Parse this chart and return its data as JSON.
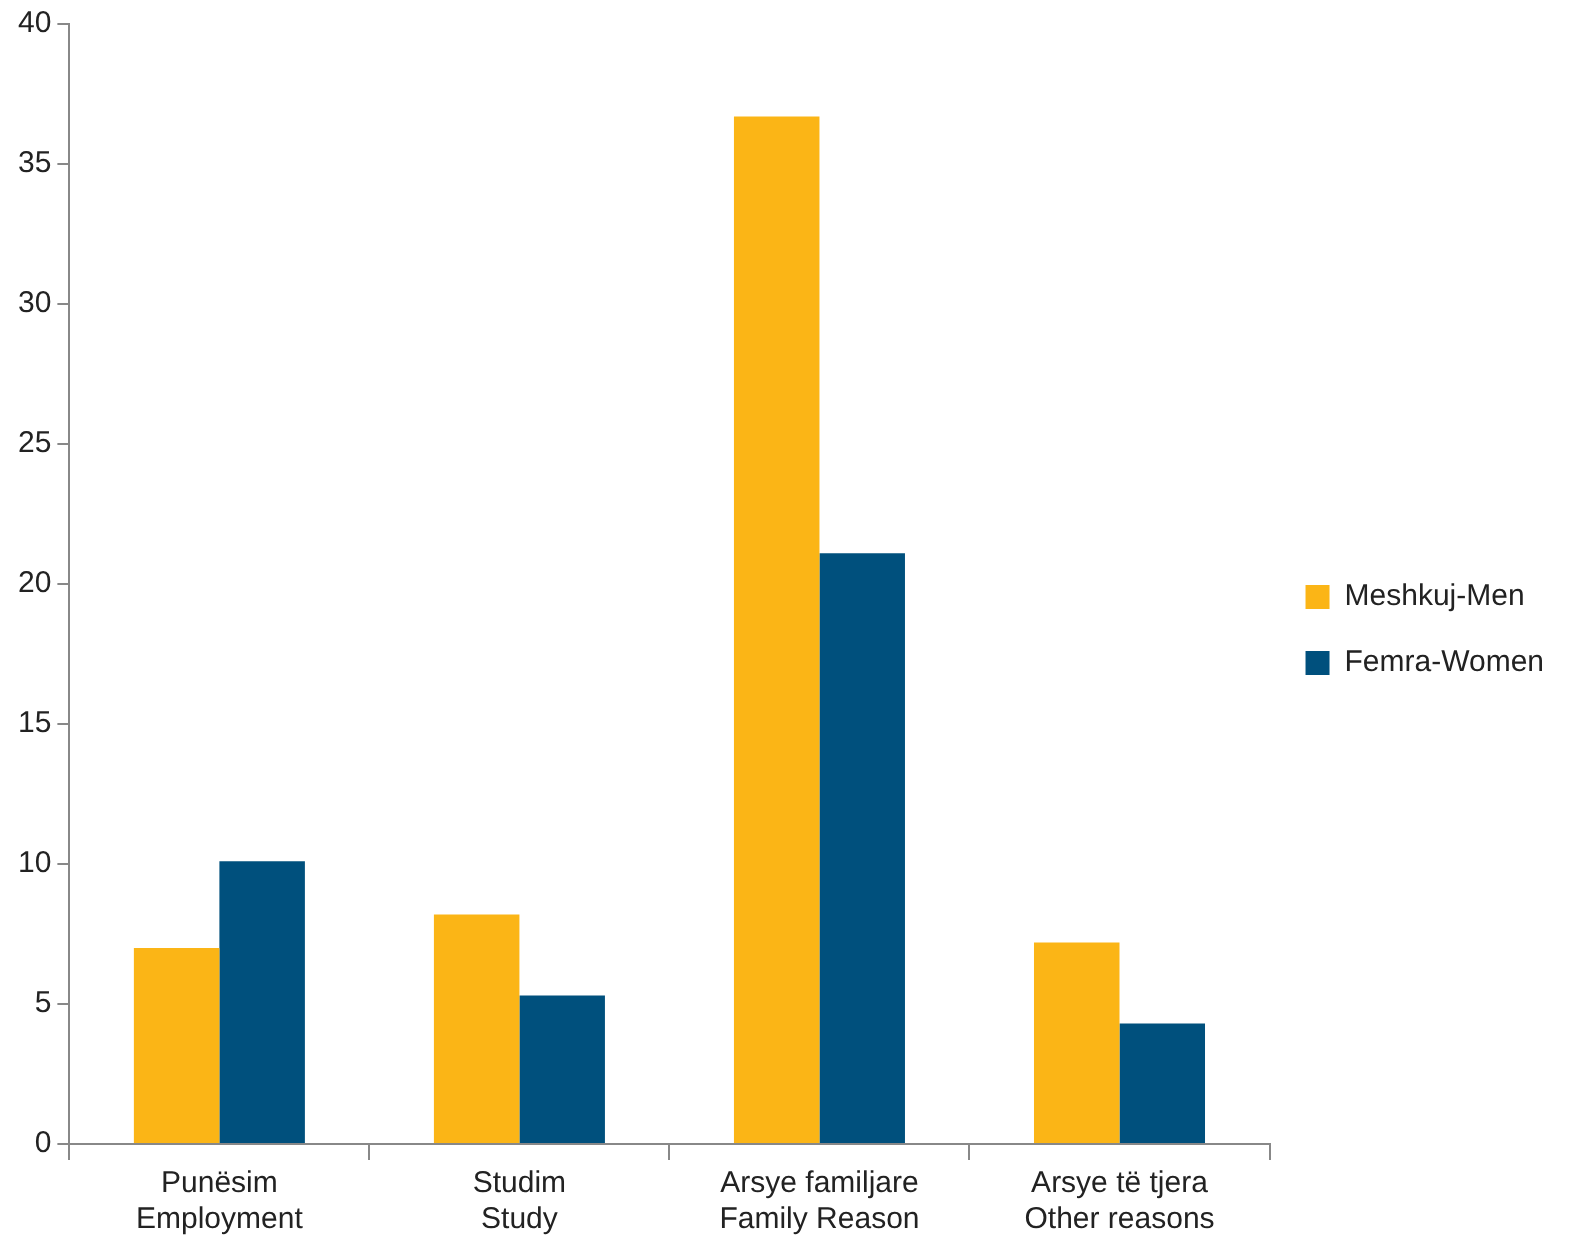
{
  "chart_data": {
    "type": "bar",
    "categories": [
      "Punësim\nEmployment",
      "Studim\nStudy",
      "Arsye familjare\nFamily Reason",
      "Arsye të tjera\nOther reasons"
    ],
    "series": [
      {
        "name": "Meshkuj-Men",
        "color": "#fbb516",
        "values": [
          7.0,
          8.2,
          36.7,
          7.2
        ]
      },
      {
        "name": "Femra-Women",
        "color": "#00507d",
        "values": [
          10.1,
          5.3,
          21.1,
          4.3
        ]
      }
    ],
    "ylim": [
      0,
      40
    ],
    "yticks": [
      0,
      5,
      10,
      15,
      20,
      25,
      30,
      35,
      40
    ],
    "grid": false,
    "legend": "right"
  }
}
